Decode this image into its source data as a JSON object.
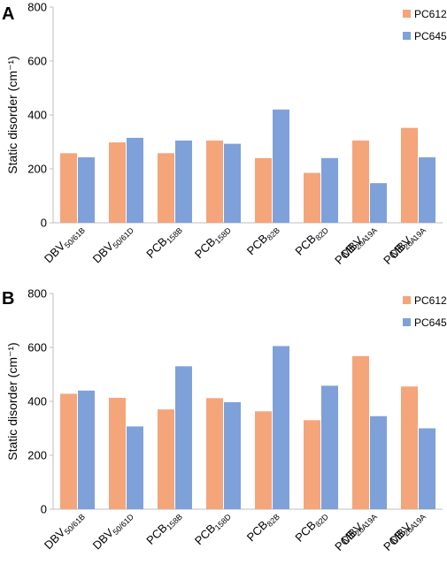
{
  "colors": {
    "PC612": "#f4a57a",
    "PC645": "#7fa1d9",
    "axis": "#bfbfbf",
    "text": "#000000"
  },
  "chart_data": [
    {
      "panel_label": "A",
      "type": "bar",
      "ylabel": "Static disorder (cm⁻¹)",
      "ylim": [
        0,
        800
      ],
      "yticks": [
        0,
        200,
        400,
        600,
        800
      ],
      "grid": false,
      "legend_position": "top-right",
      "categories": [
        {
          "lines": [
            [
              {
                "t": "DBV"
              },
              {
                "t": "50/61B",
                "sub": true
              }
            ]
          ]
        },
        {
          "lines": [
            [
              {
                "t": "DBV"
              },
              {
                "t": "50/61D",
                "sub": true
              }
            ]
          ]
        },
        {
          "lines": [
            [
              {
                "t": "PCB"
              },
              {
                "t": "158B",
                "sub": true
              }
            ]
          ]
        },
        {
          "lines": [
            [
              {
                "t": "PCB"
              },
              {
                "t": "158D",
                "sub": true
              }
            ]
          ]
        },
        {
          "lines": [
            [
              {
                "t": "PCB"
              },
              {
                "t": "82B",
                "sub": true
              }
            ]
          ]
        },
        {
          "lines": [
            [
              {
                "t": "PCB"
              },
              {
                "t": "82D",
                "sub": true
              }
            ]
          ]
        },
        {
          "lines": [
            [
              {
                "t": "PCB"
              },
              {
                "t": "20A",
                "sub": true
              }
            ],
            [
              {
                "t": "MBV "
              },
              {
                "t": "19A",
                "sub": true
              }
            ]
          ]
        },
        {
          "lines": [
            [
              {
                "t": "PCB"
              },
              {
                "t": "20A",
                "sub": true
              }
            ],
            [
              {
                "t": "MBV "
              },
              {
                "t": "19A",
                "sub": true
              }
            ]
          ]
        }
      ],
      "series": [
        {
          "name": "PC612",
          "color": "#f4a57a",
          "values": [
            258,
            298,
            258,
            305,
            240,
            185,
            305,
            352
          ]
        },
        {
          "name": "PC645",
          "color": "#7fa1d9",
          "values": [
            243,
            315,
            305,
            293,
            420,
            240,
            147,
            243
          ]
        }
      ]
    },
    {
      "panel_label": "B",
      "type": "bar",
      "ylabel": "Static disorder (cm⁻¹)",
      "ylim": [
        0,
        800
      ],
      "yticks": [
        0,
        200,
        400,
        600,
        800
      ],
      "grid": false,
      "legend_position": "top-right",
      "categories": [
        {
          "lines": [
            [
              {
                "t": "DBV"
              },
              {
                "t": "50/61B",
                "sub": true
              }
            ]
          ]
        },
        {
          "lines": [
            [
              {
                "t": "DBV"
              },
              {
                "t": "50/61D",
                "sub": true
              }
            ]
          ]
        },
        {
          "lines": [
            [
              {
                "t": "PCB"
              },
              {
                "t": "158B",
                "sub": true
              }
            ]
          ]
        },
        {
          "lines": [
            [
              {
                "t": "PCB"
              },
              {
                "t": "158D",
                "sub": true
              }
            ]
          ]
        },
        {
          "lines": [
            [
              {
                "t": "PCB"
              },
              {
                "t": "82B",
                "sub": true
              }
            ]
          ]
        },
        {
          "lines": [
            [
              {
                "t": "PCB"
              },
              {
                "t": "82D",
                "sub": true
              }
            ]
          ]
        },
        {
          "lines": [
            [
              {
                "t": "PCB"
              },
              {
                "t": "20A",
                "sub": true
              }
            ],
            [
              {
                "t": "MBV "
              },
              {
                "t": "19A",
                "sub": true
              }
            ]
          ]
        },
        {
          "lines": [
            [
              {
                "t": "PCB"
              },
              {
                "t": "20A",
                "sub": true
              }
            ],
            [
              {
                "t": "MBV "
              },
              {
                "t": "19A",
                "sub": true
              }
            ]
          ]
        }
      ],
      "series": [
        {
          "name": "PC612",
          "color": "#f4a57a",
          "values": [
            428,
            413,
            370,
            412,
            363,
            330,
            568,
            455
          ]
        },
        {
          "name": "PC645",
          "color": "#7fa1d9",
          "values": [
            440,
            307,
            530,
            397,
            605,
            458,
            345,
            300
          ]
        }
      ]
    }
  ]
}
